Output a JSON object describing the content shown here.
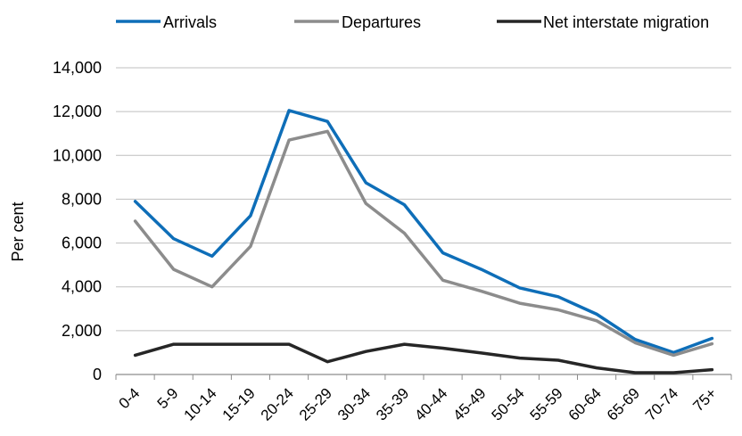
{
  "chart_data": {
    "type": "line",
    "title": "",
    "xlabel": "",
    "ylabel": "Per cent",
    "ylim": [
      0,
      14000
    ],
    "yticks": [
      0,
      2000,
      4000,
      6000,
      8000,
      10000,
      12000,
      14000
    ],
    "ytick_labels": [
      "0",
      "2,000",
      "4,000",
      "6,000",
      "8,000",
      "10,000",
      "12,000",
      "14,000"
    ],
    "grid": "horizontal",
    "legend_position": "top",
    "categories": [
      "0-4",
      "5-9",
      "10-14",
      "15-19",
      "20-24",
      "25-29",
      "30-34",
      "35-39",
      "40-44",
      "45-49",
      "50-54",
      "55-59",
      "60-64",
      "65-69",
      "70-74",
      "75+"
    ],
    "series": [
      {
        "name": "Arrivals",
        "color": "#0e6eb8",
        "values": [
          7900,
          6200,
          5400,
          7250,
          12050,
          11550,
          8750,
          7750,
          5550,
          4800,
          3950,
          3550,
          2750,
          1600,
          1000,
          1650
        ]
      },
      {
        "name": "Departures",
        "color": "#8c8c8c",
        "values": [
          7000,
          4800,
          4000,
          5850,
          10700,
          11100,
          7800,
          6450,
          4300,
          3800,
          3250,
          2950,
          2450,
          1450,
          880,
          1400
        ]
      },
      {
        "name": "Net interstate migration",
        "color": "#262626",
        "values": [
          880,
          1380,
          1380,
          1380,
          1380,
          580,
          1050,
          1380,
          1200,
          980,
          750,
          650,
          300,
          80,
          80,
          220
        ]
      }
    ]
  }
}
